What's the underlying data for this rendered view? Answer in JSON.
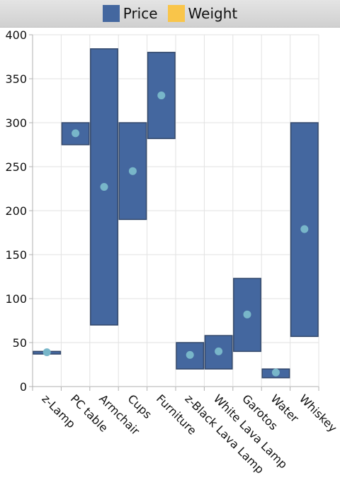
{
  "chart_data": {
    "type": "range-bar",
    "legend": [
      {
        "name": "Price",
        "color": "#44679f"
      },
      {
        "name": "Weight",
        "color": "#f9c54a"
      }
    ],
    "categories": [
      "z-Lamp",
      "PC table",
      "Armchair",
      "Cups",
      "Furniture",
      "z-Black Lava Lamp",
      "White Lava Lamp",
      "Garotos",
      "Water",
      "Whiskey"
    ],
    "series": [
      {
        "name": "Price",
        "low": [
          37,
          275,
          70,
          190,
          282,
          20,
          20,
          40,
          10,
          57
        ],
        "high": [
          40,
          300,
          384,
          300,
          380,
          50,
          58,
          123,
          20,
          300
        ],
        "mid": [
          39,
          288,
          227,
          245,
          331,
          36,
          40,
          82,
          16,
          179
        ]
      }
    ],
    "ylim": [
      0,
      400
    ],
    "yticks": [
      0,
      50,
      100,
      150,
      200,
      250,
      300,
      350,
      400
    ],
    "grid": true,
    "legend_position": "top",
    "colors": {
      "bar": "#44679f",
      "bar_border": "#34496b",
      "marker": "#78b6c9",
      "grid": "#e2e2e2",
      "axis": "#b0b0b0"
    }
  }
}
